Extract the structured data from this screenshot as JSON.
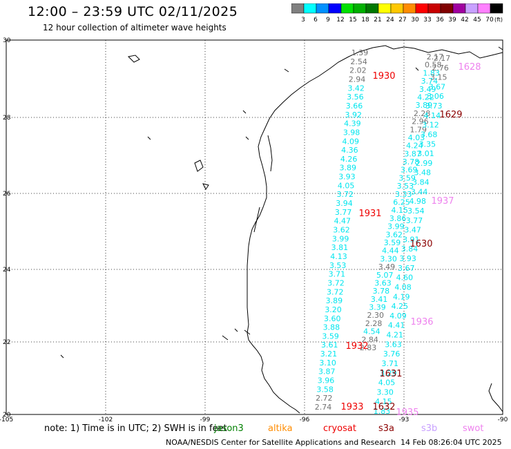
{
  "header": {
    "title": "12:00 – 23:59 UTC 02/11/2025",
    "subtitle": "12 hour collection of altimeter wave heights"
  },
  "legend": {
    "unit": "(ft)",
    "bins": [
      {
        "label": "3",
        "color": "#808080"
      },
      {
        "label": "6",
        "color": "#00ffff"
      },
      {
        "label": "9",
        "color": "#0090ff"
      },
      {
        "label": "12",
        "color": "#0000ff"
      },
      {
        "label": "15",
        "color": "#00e000"
      },
      {
        "label": "18",
        "color": "#00b000"
      },
      {
        "label": "21",
        "color": "#007800"
      },
      {
        "label": "24",
        "color": "#ffff00"
      },
      {
        "label": "27",
        "color": "#ffc800"
      },
      {
        "label": "30",
        "color": "#ff8c00"
      },
      {
        "label": "33",
        "color": "#ff0000"
      },
      {
        "label": "36",
        "color": "#c80000"
      },
      {
        "label": "39",
        "color": "#800000"
      },
      {
        "label": "42",
        "color": "#a000a0"
      },
      {
        "label": "45",
        "color": "#c8a0ff"
      },
      {
        "label": "70",
        "color": "#ff80ff"
      },
      {
        "label": "",
        "color": "#000000"
      }
    ]
  },
  "axes": {
    "lon_ticks": [
      "-105",
      "-102",
      "-99",
      "-96",
      "-93",
      "-90"
    ],
    "lat_ticks": [
      "30",
      "28",
      "26",
      "24",
      "22",
      "20"
    ]
  },
  "tracks": {
    "west": {
      "color": "#00e5ee",
      "gray": "#707070",
      "values": [
        "1.39",
        "2.54",
        "2.02",
        "2.94",
        "3.42",
        "3.56",
        "3.66",
        "3.92",
        "4.39",
        "3.98",
        "4.09",
        "4.36",
        "4.26",
        "3.89",
        "3.93",
        "4.05",
        "3.72",
        "3.94",
        "3.77",
        "4.47",
        "3.62",
        "3.99",
        "3.81",
        "4.13",
        "3.53",
        "3.71",
        "3.72",
        "3.72",
        "3.89",
        "3.20",
        "3.60",
        "3.88",
        "3.59",
        "3.61",
        "3.21",
        "3.10",
        "3.87",
        "3.96",
        "3.58",
        "2.72",
        "2.74"
      ]
    },
    "middle": {
      "values": [
        "2.83",
        "2.84",
        "4.54",
        "2.28",
        "2.30",
        "3.39",
        "3.41",
        "3.78",
        "3.63",
        "5.07",
        "3.49",
        "3.30",
        "4.44",
        "3.59",
        "3.62",
        "3.99",
        "3.86",
        "4.15",
        "6.25",
        "3.33",
        "3.53",
        "3.59",
        "3.69",
        "3.78",
        "3.87",
        "4.24",
        "4.03",
        "1.79",
        "2.96",
        "2.28",
        "3.89",
        "4.22",
        "3.49",
        "3.74",
        "1.83",
        "0.58",
        "2.17"
      ]
    },
    "east": {
      "values": [
        "2.17",
        "2.76",
        "3.15",
        "3.67",
        "3.06",
        "3.73",
        "4.14",
        "3.12",
        "3.68",
        "3.35",
        "3.01",
        "2.99",
        "3.48",
        "3.84",
        "3.44",
        "4.98",
        "3.54",
        "3.77",
        "3.47",
        "3.91",
        "3.84",
        "3.93",
        "3.67",
        "4.60",
        "4.08",
        "4.19",
        "4.25",
        "4.09",
        "4.41",
        "4.21",
        "3.63",
        "3.76",
        "3.71",
        "3.29",
        "4.05",
        "3.30",
        "4.15",
        "1.83"
      ]
    },
    "time_labels": [
      {
        "text": "1930",
        "color": "#ee0000"
      },
      {
        "text": "1931",
        "color": "#ee0000"
      },
      {
        "text": "1932",
        "color": "#ee0000"
      },
      {
        "text": "1933",
        "color": "#ee0000"
      },
      {
        "text": "1628",
        "color": "#ee82ee"
      },
      {
        "text": "1629",
        "color": "#8b0000"
      },
      {
        "text": "1937",
        "color": "#ee82ee"
      },
      {
        "text": "1630",
        "color": "#8b0000"
      },
      {
        "text": "1936",
        "color": "#ee82ee"
      },
      {
        "text": "1631",
        "color": "#8b0000"
      },
      {
        "text": "1632",
        "color": "#8b0000"
      },
      {
        "text": "1935",
        "color": "#ee82ee"
      }
    ]
  },
  "note": {
    "prefix": "note:  1) Time is in UTC;  2) SWH is in feet",
    "satellites": [
      {
        "name": "jason3",
        "color": "#008000"
      },
      {
        "name": "altika",
        "color": "#ff8c00"
      },
      {
        "name": "cryosat",
        "color": "#ee0000"
      },
      {
        "name": "s3a",
        "color": "#8b0000"
      },
      {
        "name": "s3b",
        "color": "#c8a0ff"
      },
      {
        "name": "swot",
        "color": "#ee82ee"
      }
    ]
  },
  "footer": {
    "credit": "NOAA/NESDIS Center for Satellite Applications and Research",
    "timestamp": "14 Feb 08:26:04 UTC 2025"
  }
}
